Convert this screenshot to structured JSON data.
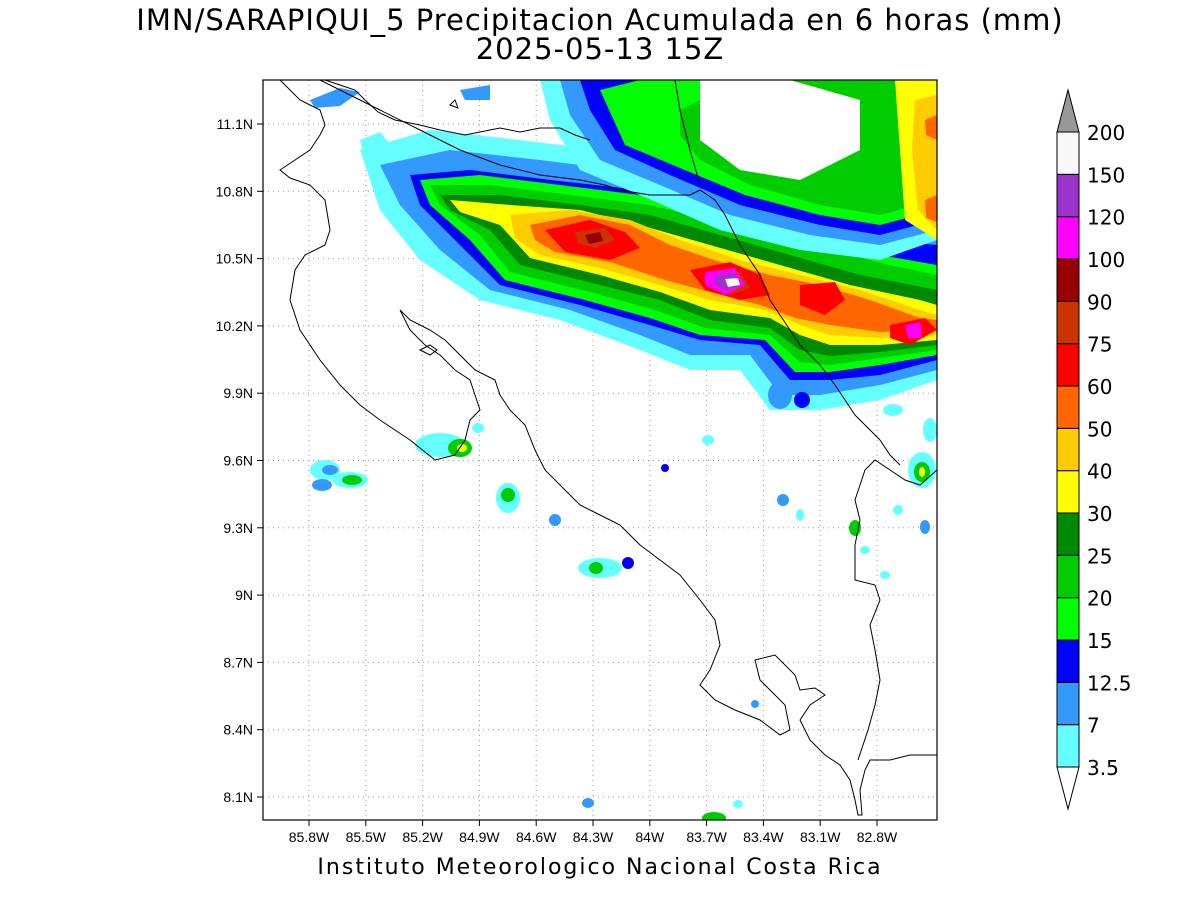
{
  "title_line1": "IMN/SARAPIQUI_5 Precipitacion Acumulada en 6 horas (mm)",
  "title_line2": "2025-05-13 15Z",
  "footer": "Instituto Meteorologico Nacional Costa Rica",
  "map": {
    "lon_range": [
      -86.2,
      -82.3
    ],
    "lat_range": [
      8.0,
      11.3
    ],
    "x_ticks": [
      {
        "value": -85.8,
        "label": "85.8W"
      },
      {
        "value": -85.5,
        "label": "85.5W"
      },
      {
        "value": -85.2,
        "label": "85.2W"
      },
      {
        "value": -84.9,
        "label": "84.9W"
      },
      {
        "value": -84.6,
        "label": "84.6W"
      },
      {
        "value": -84.3,
        "label": "84.3W"
      },
      {
        "value": -84.0,
        "label": "84W"
      },
      {
        "value": -83.7,
        "label": "83.7W"
      },
      {
        "value": -83.4,
        "label": "83.4W"
      },
      {
        "value": -83.1,
        "label": "83.1W"
      },
      {
        "value": -82.8,
        "label": "82.8W"
      }
    ],
    "y_ticks": [
      {
        "value": 11.1,
        "label": "11.1N"
      },
      {
        "value": 10.8,
        "label": "10.8N"
      },
      {
        "value": 10.5,
        "label": "10.5N"
      },
      {
        "value": 10.2,
        "label": "10.2N"
      },
      {
        "value": 9.9,
        "label": "9.9N"
      },
      {
        "value": 9.6,
        "label": "9.6N"
      },
      {
        "value": 9.3,
        "label": "9.3N"
      },
      {
        "value": 9.0,
        "label": "9N"
      },
      {
        "value": 8.7,
        "label": "8.7N"
      },
      {
        "value": 8.4,
        "label": "8.4N"
      },
      {
        "value": 8.1,
        "label": "8.1N"
      }
    ],
    "grid": "dotted"
  },
  "colorbar": {
    "levels": [
      {
        "label": "3.5",
        "color": "#66ffff"
      },
      {
        "label": "7",
        "color": "#3399ff"
      },
      {
        "label": "12.5",
        "color": "#0000ff"
      },
      {
        "label": "15",
        "color": "#00ff00"
      },
      {
        "label": "20",
        "color": "#00cc00"
      },
      {
        "label": "25",
        "color": "#008800"
      },
      {
        "label": "30",
        "color": "#ffff00"
      },
      {
        "label": "40",
        "color": "#ffcc00"
      },
      {
        "label": "50",
        "color": "#ff6600"
      },
      {
        "label": "60",
        "color": "#ff0000"
      },
      {
        "label": "75",
        "color": "#cc3300"
      },
      {
        "label": "90",
        "color": "#990000"
      },
      {
        "label": "100",
        "color": "#ff00ff"
      },
      {
        "label": "120",
        "color": "#9933cc"
      },
      {
        "label": "150",
        "color": "#f8f8f8"
      },
      {
        "label": "200",
        "color": "#999999"
      }
    ]
  }
}
